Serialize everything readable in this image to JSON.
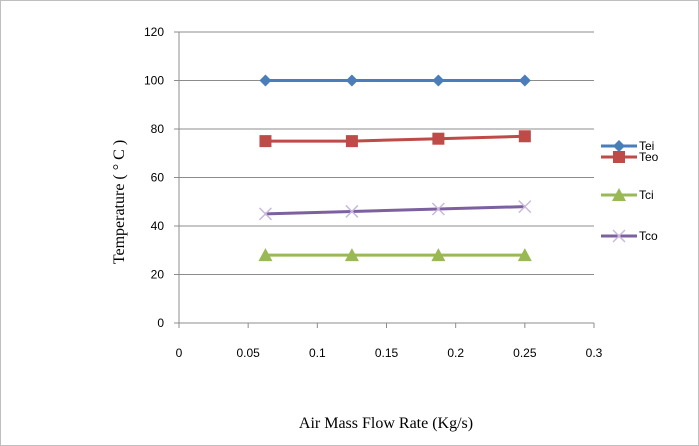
{
  "chart_data": {
    "type": "line",
    "title": "",
    "xlabel": "Air Mass Flow Rate (Kg/s)",
    "ylabel": "Temperature ( ° C )",
    "xlim": [
      0,
      0.3
    ],
    "ylim": [
      0,
      120
    ],
    "x_ticks": [
      0,
      0.05,
      0.1,
      0.15,
      0.2,
      0.25,
      0.3
    ],
    "y_ticks": [
      0,
      20,
      40,
      60,
      80,
      100,
      120
    ],
    "grid": "horizontal",
    "legend_position": "right",
    "x": [
      0.0625,
      0.125,
      0.1875,
      0.25
    ],
    "series": [
      {
        "name": "Tei",
        "values": [
          100,
          100,
          100,
          100
        ],
        "color": "#4a7ebb",
        "marker": "diamond"
      },
      {
        "name": "Teo",
        "values": [
          75,
          75,
          76,
          77
        ],
        "color": "#be4b48",
        "marker": "square"
      },
      {
        "name": "Tci",
        "values": [
          28,
          28,
          28,
          28
        ],
        "color": "#98b954",
        "marker": "triangle"
      },
      {
        "name": "Tco",
        "values": [
          45,
          46,
          47,
          48
        ],
        "color": "#7d60a0",
        "marker": "x"
      }
    ]
  }
}
